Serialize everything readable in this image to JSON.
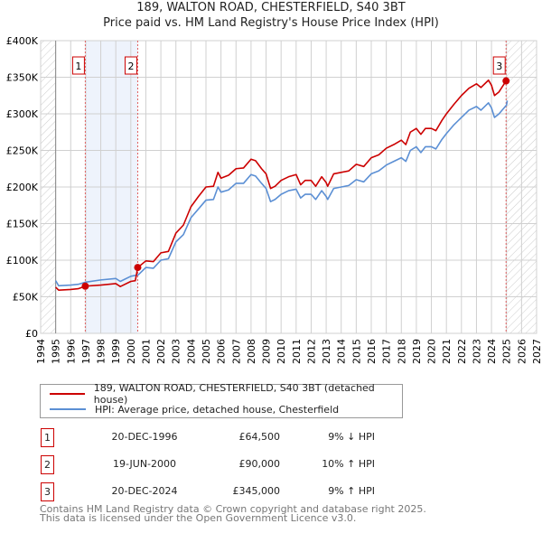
{
  "title": "189, WALTON ROAD, CHESTERFIELD, S40 3BT",
  "subtitle": "Price paid vs. HM Land Registry's House Price Index (HPI)",
  "chart_data": {
    "type": "line",
    "xlim": [
      1994,
      2027
    ],
    "ylim": [
      0,
      400000
    ],
    "yticks": [
      0,
      50000,
      100000,
      150000,
      200000,
      250000,
      300000,
      350000,
      400000
    ],
    "ytick_labels": [
      "£0",
      "£50K",
      "£100K",
      "£150K",
      "£200K",
      "£250K",
      "£300K",
      "£350K",
      "£400K"
    ],
    "xticks": [
      1994,
      1995,
      1996,
      1997,
      1998,
      1999,
      2000,
      2001,
      2002,
      2003,
      2004,
      2005,
      2006,
      2007,
      2008,
      2009,
      2010,
      2011,
      2012,
      2013,
      2014,
      2015,
      2016,
      2017,
      2018,
      2019,
      2020,
      2021,
      2022,
      2023,
      2024,
      2025,
      2026,
      2027
    ],
    "data_range": [
      1995,
      2025
    ],
    "colors": {
      "property": "#cc0000",
      "hpi": "#5b8fd4",
      "shade": "#eef3fc"
    },
    "series": [
      {
        "name": "HPI: Average price, detached house, Chesterfield",
        "x": [
          1995.0,
          1995.2,
          1996,
          1996.5,
          1997,
          1998,
          1999,
          1999.3,
          2000,
          2000.5,
          2001,
          2001.5,
          2002,
          2002.5,
          2003,
          2003.5,
          2004,
          2004.5,
          2005,
          2005.5,
          2005.8,
          2006,
          2006.5,
          2007,
          2007.5,
          2008,
          2008.3,
          2008.7,
          2009,
          2009.3,
          2009.6,
          2010,
          2010.5,
          2011,
          2011.3,
          2011.6,
          2012,
          2012.3,
          2012.7,
          2013,
          2013.1,
          2013.5,
          2014,
          2014.5,
          2015,
          2015.5,
          2016,
          2016.5,
          2017,
          2017.5,
          2018,
          2018.3,
          2018.6,
          2019,
          2019.3,
          2019.6,
          2020,
          2020.3,
          2020.7,
          2021,
          2021.5,
          2022,
          2022.5,
          2023,
          2023.3,
          2023.8,
          2024,
          2024.2,
          2024.5,
          2025,
          2025.05
        ],
        "values": [
          72000,
          65000,
          66000,
          67000,
          70000,
          73000,
          75000,
          71000,
          78000,
          80000,
          90000,
          89000,
          100000,
          102000,
          125000,
          135000,
          158000,
          170000,
          182000,
          183000,
          200000,
          193000,
          196000,
          205000,
          205000,
          217000,
          215000,
          205000,
          198000,
          180000,
          183000,
          190000,
          195000,
          197000,
          185000,
          190000,
          190000,
          183000,
          195000,
          187000,
          183000,
          198000,
          200000,
          202000,
          210000,
          207000,
          218000,
          222000,
          230000,
          235000,
          240000,
          235000,
          250000,
          255000,
          247000,
          255000,
          255000,
          252000,
          265000,
          273000,
          285000,
          295000,
          305000,
          310000,
          305000,
          315000,
          308000,
          295000,
          300000,
          312000,
          318000
        ]
      },
      {
        "name": "189, WALTON ROAD, CHESTERFIELD, S40 3BT (detached house)",
        "x": [
          1995.0,
          1995.2,
          1996,
          1996.5,
          1996.97,
          1998,
          1999,
          1999.3,
          2000,
          2000.3,
          2000.46,
          2001,
          2001.5,
          2002,
          2002.5,
          2003,
          2003.5,
          2004,
          2004.5,
          2005,
          2005.5,
          2005.8,
          2006,
          2006.5,
          2007,
          2007.5,
          2008,
          2008.3,
          2008.7,
          2009,
          2009.3,
          2009.6,
          2010,
          2010.5,
          2011,
          2011.3,
          2011.6,
          2012,
          2012.3,
          2012.7,
          2013,
          2013.1,
          2013.5,
          2014,
          2014.5,
          2015,
          2015.5,
          2016,
          2016.5,
          2017,
          2017.5,
          2018,
          2018.3,
          2018.6,
          2019,
          2019.3,
          2019.6,
          2020,
          2020.3,
          2020.7,
          2021,
          2021.5,
          2022,
          2022.5,
          2023,
          2023.3,
          2023.8,
          2024,
          2024.2,
          2024.5,
          2024.97
        ],
        "values": [
          63000,
          59000,
          60000,
          61000,
          64500,
          66000,
          68000,
          64000,
          71000,
          72000,
          90000,
          99000,
          98000,
          110000,
          112000,
          137000,
          148000,
          173000,
          187000,
          200000,
          201000,
          220000,
          212000,
          216000,
          225000,
          226000,
          238000,
          236000,
          225000,
          218000,
          198000,
          201000,
          209000,
          214000,
          217000,
          203000,
          209000,
          209000,
          201000,
          214000,
          206000,
          201000,
          218000,
          220000,
          222000,
          231000,
          228000,
          240000,
          244000,
          253000,
          258000,
          264000,
          258000,
          275000,
          280000,
          272000,
          280000,
          280000,
          277000,
          291000,
          300000,
          313000,
          325000,
          335000,
          341000,
          336000,
          346000,
          339000,
          325000,
          330000,
          345000
        ]
      }
    ],
    "sales": [
      {
        "label": "1",
        "x": 1996.97,
        "value": 64500
      },
      {
        "label": "2",
        "x": 2000.46,
        "value": 90000
      },
      {
        "label": "3",
        "x": 2024.97,
        "value": 345000
      }
    ]
  },
  "legend": {
    "property": "189, WALTON ROAD, CHESTERFIELD, S40 3BT (detached house)",
    "hpi": "HPI: Average price, detached house, Chesterfield"
  },
  "table": [
    {
      "num": "1",
      "date": "20-DEC-1996",
      "price": "£64,500",
      "hpi": "9% ↓ HPI"
    },
    {
      "num": "2",
      "date": "19-JUN-2000",
      "price": "£90,000",
      "hpi": "10% ↑ HPI"
    },
    {
      "num": "3",
      "date": "20-DEC-2024",
      "price": "£345,000",
      "hpi": "9% ↑ HPI"
    }
  ],
  "footer": [
    "Contains HM Land Registry data © Crown copyright and database right 2025.",
    "This data is licensed under the Open Government Licence v3.0."
  ]
}
